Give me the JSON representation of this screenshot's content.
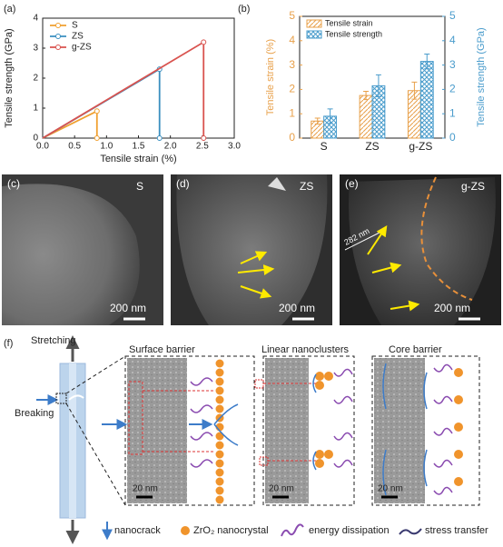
{
  "chart_data": [
    {
      "type": "line",
      "panel_label": "(a)",
      "x_label": "Tensile strain (%)",
      "y_label": "Tensile strength (GPa)",
      "xlim": [
        0,
        3
      ],
      "xticks": [
        {
          "value": 0,
          "label": "0.0"
        },
        0.5,
        {
          "value": 1,
          "label": "1.0"
        },
        1.5,
        {
          "value": 2,
          "label": "2.0"
        },
        2.5,
        {
          "value": 3,
          "label": "3.0"
        }
      ],
      "ylim": [
        0,
        4
      ],
      "yticks": [
        0,
        1,
        2,
        3,
        4
      ],
      "grid": false,
      "legend": "upper left",
      "series": [
        {
          "name": "S",
          "color": "#f0a030",
          "x": [
            0,
            0.85,
            0.85
          ],
          "values": [
            0,
            0.9,
            0
          ]
        },
        {
          "name": "ZS",
          "color": "#3a8fc0",
          "x": [
            0,
            1.83,
            1.83
          ],
          "values": [
            0,
            2.3,
            0
          ]
        },
        {
          "name": "g-ZS",
          "color": "#d9534f",
          "x": [
            0,
            2.52,
            2.52
          ],
          "values": [
            0,
            3.2,
            0
          ]
        }
      ]
    },
    {
      "type": "bar",
      "panel_label": "(b)",
      "y_label": "Tensile strain (%)",
      "y2_label": "Tensile strength (GPa)",
      "categories": [
        "S",
        "ZS",
        "g-ZS"
      ],
      "ylim": [
        0,
        5
      ],
      "yticks": [
        0,
        1,
        2,
        3,
        4,
        5
      ],
      "y2lim": [
        0,
        5
      ],
      "y2ticks": [
        0,
        1,
        2,
        3,
        4,
        5
      ],
      "legend": "upper left",
      "series": [
        {
          "name": "Tensile strain",
          "color": "#e8a04a",
          "axis": "y",
          "values": [
            0.7,
            1.75,
            1.95
          ],
          "errors": [
            0.12,
            0.17,
            0.35
          ]
        },
        {
          "name": "Tensile strength",
          "color": "#4a9ccc",
          "axis": "y2",
          "values": [
            0.9,
            2.15,
            3.15
          ],
          "errors": [
            0.3,
            0.45,
            0.3
          ]
        }
      ]
    }
  ],
  "panels": {
    "c": {
      "label": "(c)",
      "sample": "S",
      "scale": "200 nm"
    },
    "d": {
      "label": "(d)",
      "sample": "ZS",
      "scale": "200 nm"
    },
    "e": {
      "label": "(e)",
      "sample": "g-ZS",
      "measure": "282 nm",
      "scale": "200 nm"
    },
    "f": {
      "label": "(f)",
      "stretching": "Stretching",
      "breaking": "Breaking",
      "titles": [
        "Surface barrier",
        "Linear nanoclusters",
        "Core barrier"
      ],
      "scales": [
        "20 nm",
        "20 nm",
        "20 nm"
      ],
      "legend": [
        "nanocrack",
        "ZrO₂ nanocrystal",
        "energy dissipation",
        "stress transfer"
      ]
    }
  }
}
